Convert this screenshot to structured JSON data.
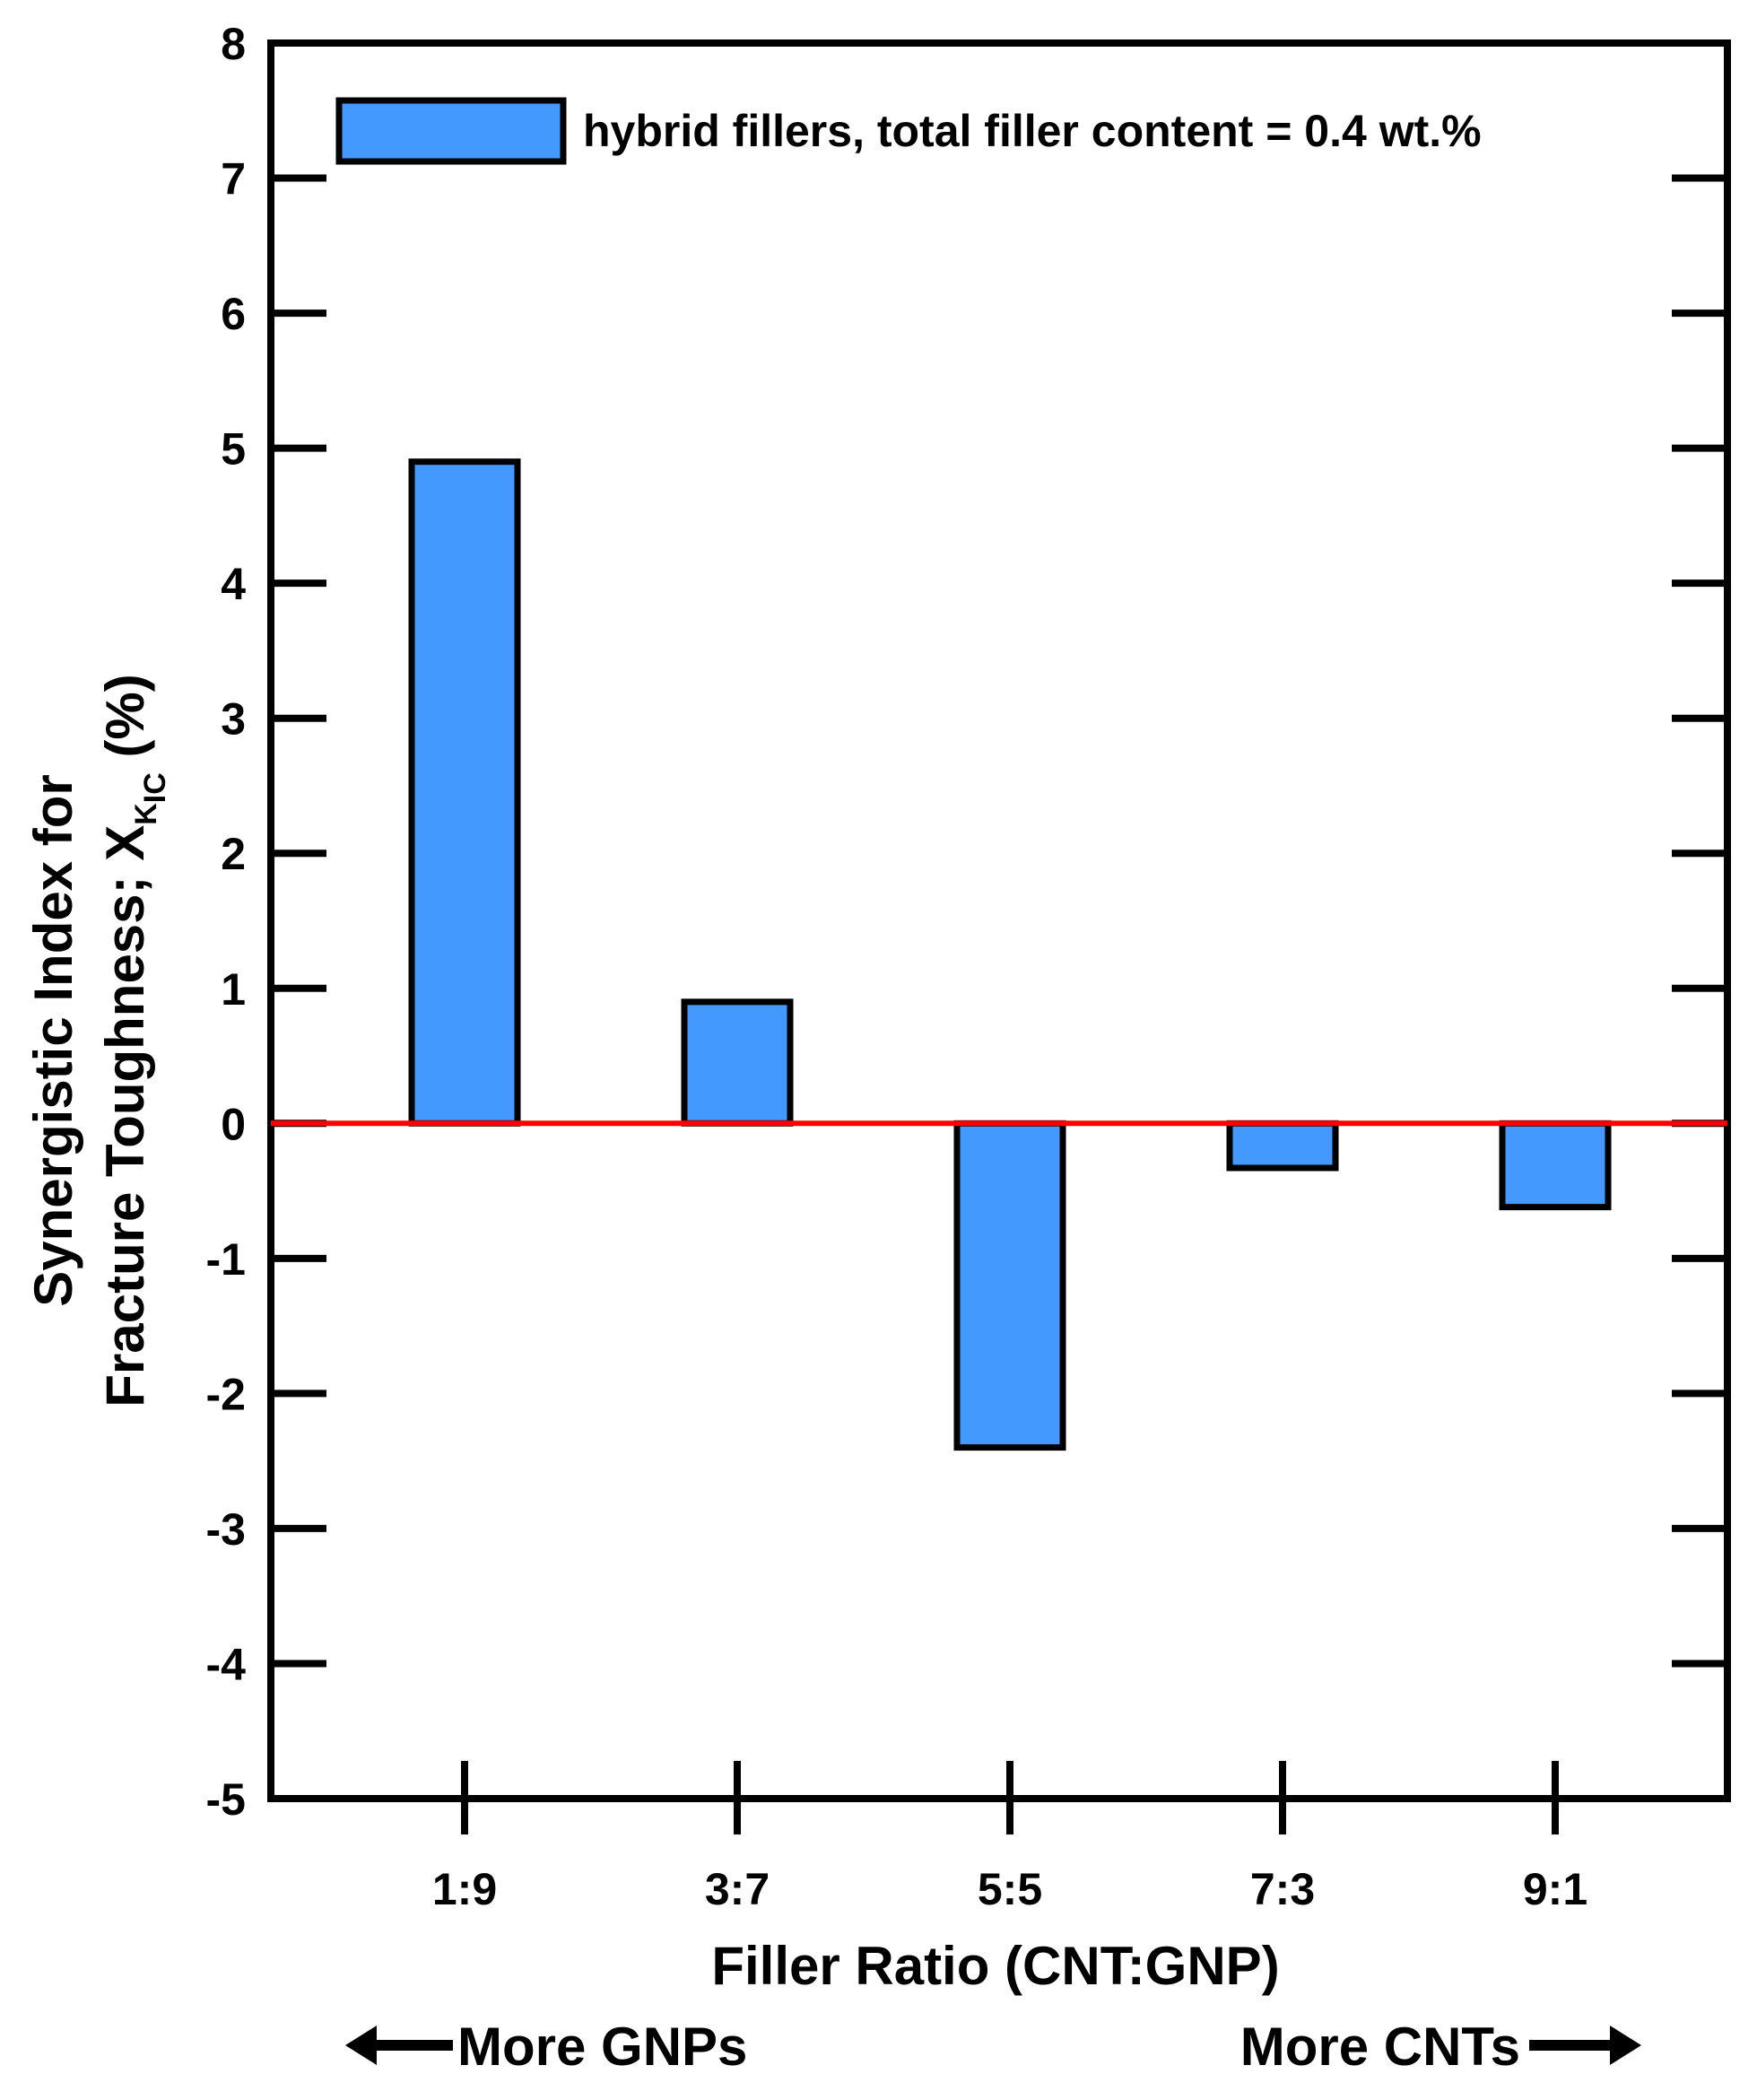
{
  "chart_data": {
    "type": "bar",
    "categories": [
      "1:9",
      "3:7",
      "5:5",
      "7:3",
      "9:1"
    ],
    "values": [
      4.9,
      0.9,
      -2.4,
      -0.33,
      -0.62
    ],
    "xlabel": "Filler Ratio (CNT:GNP)",
    "ylabel": {
      "line1": "Synergistic Index for",
      "line2_prefix": "Fracture Toughness;  X",
      "sub1": "K",
      "sub2": "IC",
      "suffix": "  (%)"
    },
    "ylim": [
      -5,
      8
    ],
    "yticks": [
      -5,
      -4,
      -3,
      -2,
      -1,
      0,
      1,
      2,
      3,
      4,
      5,
      6,
      7,
      8
    ],
    "legend": {
      "label": "hybrid fillers, total filler content = 0.4 wt.%",
      "position": "top-left"
    },
    "annotations": {
      "left": "More GNPs",
      "right": "More CNTs"
    },
    "reference_line": {
      "y": 0,
      "color": "#ff0000"
    },
    "colors": {
      "bar_fill": "#4499ff",
      "bar_stroke": "#000000"
    }
  }
}
